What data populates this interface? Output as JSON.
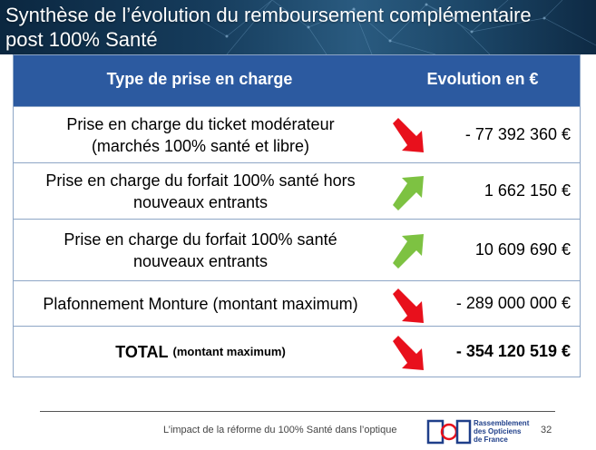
{
  "slide": {
    "title_line1": "Synthèse de l’évolution du remboursement complémentaire",
    "title_line2": "post 100% Santé"
  },
  "table": {
    "headers": {
      "type": "Type de prise en charge",
      "evolution": "Evolution en €"
    },
    "rows": [
      {
        "label_line1": "Prise en charge du ticket modérateur",
        "label_line2": "(marchés 100% santé et libre)",
        "value": "- 77 392 360 €",
        "trend": "down",
        "arrow_icon": "red-down-arrow-icon"
      },
      {
        "label_line1": "Prise en charge du forfait 100% santé hors",
        "label_line2": "nouveaux entrants",
        "value": "1 662 150 €",
        "trend": "up",
        "arrow_icon": "green-up-arrow-icon"
      },
      {
        "label_line1": "Prise en charge du forfait 100% santé",
        "label_line2": "nouveaux entrants",
        "value": "10 609 690 €",
        "trend": "up",
        "arrow_icon": "green-up-arrow-icon"
      },
      {
        "label_line1": "Plafonnement Monture (montant maximum)",
        "value": "- 289 000 000 €",
        "trend": "down",
        "arrow_icon": "red-down-arrow-icon"
      }
    ],
    "total": {
      "label": "TOTAL",
      "label_small": "(montant maximum)",
      "value": "- 354 120 519 €",
      "trend": "down",
      "arrow_icon": "red-down-arrow-icon"
    }
  },
  "colors": {
    "header_bg": "#2c5aa0",
    "down_arrow": "#e8101c",
    "up_arrow": "#7dc242",
    "border": "#8ea6c6"
  },
  "footer": {
    "caption": "L’impact de la réforme du 100% Santé dans l’optique",
    "logo_line1": "Rassemblement",
    "logo_line2": "des Opticiens",
    "logo_line3": "de France",
    "page_number": "32"
  }
}
